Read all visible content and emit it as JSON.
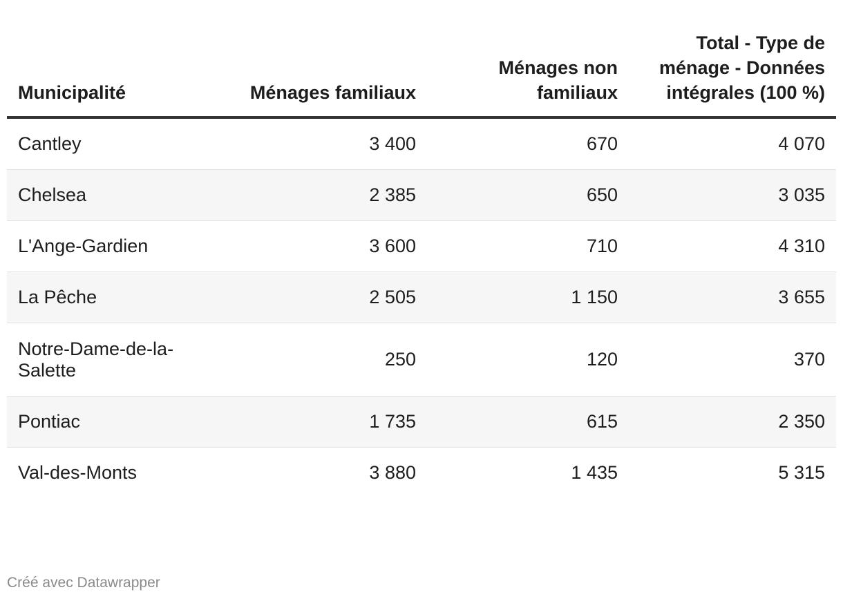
{
  "chart_data": {
    "type": "table",
    "columns": [
      "Municipalité",
      "Ménages familiaux",
      "Ménages non familiaux",
      "Total - Type de ménage - Données intégrales (100 %)"
    ],
    "rows": [
      [
        "Cantley",
        "3 400",
        "670",
        "4 070"
      ],
      [
        "Chelsea",
        "2 385",
        "650",
        "3 035"
      ],
      [
        "L'Ange-Gardien",
        "3 600",
        "710",
        "4 310"
      ],
      [
        "La Pêche",
        "2 505",
        "1 150",
        "3 655"
      ],
      [
        "Notre-Dame-de-la-Salette",
        "250",
        "120",
        "370"
      ],
      [
        "Pontiac",
        "1 735",
        "615",
        "2 350"
      ],
      [
        "Val-des-Monts",
        "3 880",
        "1 435",
        "5 315"
      ]
    ],
    "footer": "Créé avec Datawrapper"
  },
  "colors": {
    "text": "#1d1d1d",
    "header_rule": "#333333",
    "row_stripe": "#f6f6f6",
    "row_divider": "#e2e2e2",
    "footer_text": "#8a8a8a"
  }
}
